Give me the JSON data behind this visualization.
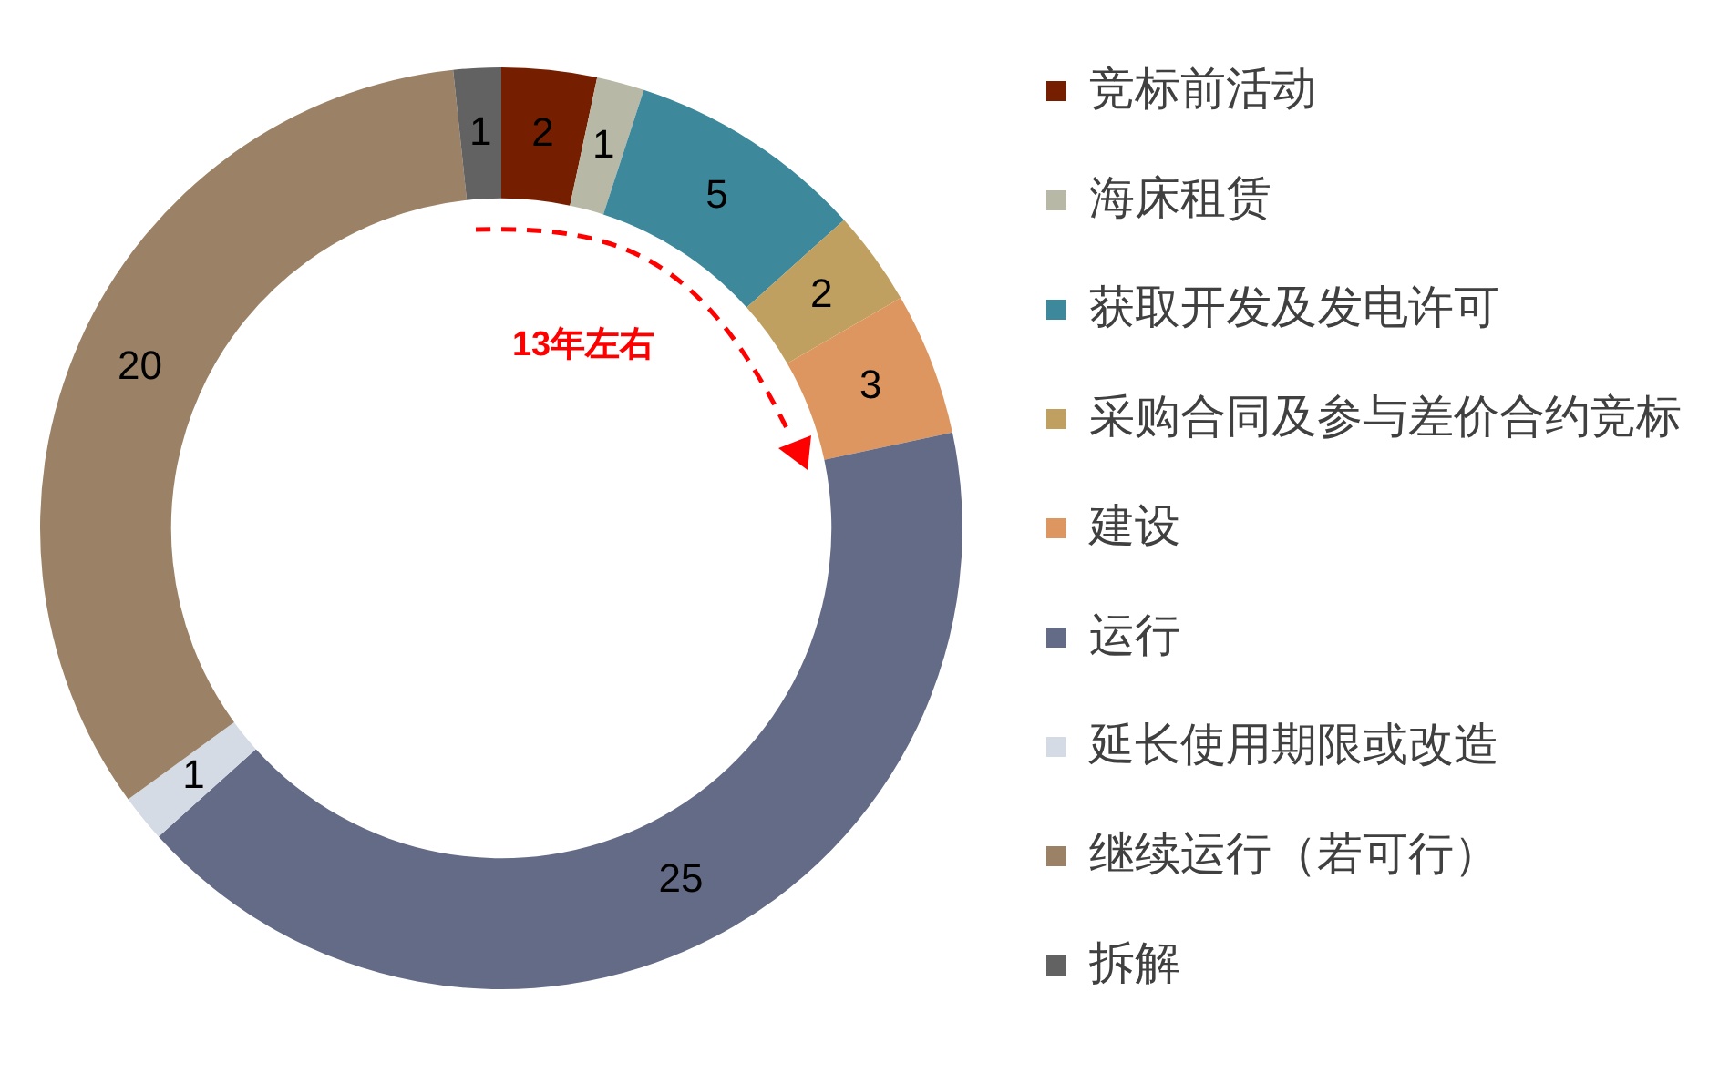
{
  "chart_data": {
    "type": "donut",
    "categories": [
      "竞标前活动",
      "海床租赁",
      "获取开发及发电许可",
      "采购合同及参与差价合约竞标",
      "建设",
      "运行",
      "延长使用期限或改造",
      "继续运行（若可行）",
      "拆解"
    ],
    "values": [
      2,
      1,
      5,
      2,
      3,
      25,
      1,
      20,
      1
    ],
    "colors": [
      "#761f00",
      "#b8b8a6",
      "#3d889b",
      "#c0a060",
      "#de9660",
      "#646b86",
      "#d5dbe5",
      "#9b8266",
      "#626262"
    ],
    "data_labels": true,
    "legend": "right",
    "annotations": [
      "13年左右"
    ]
  }
}
